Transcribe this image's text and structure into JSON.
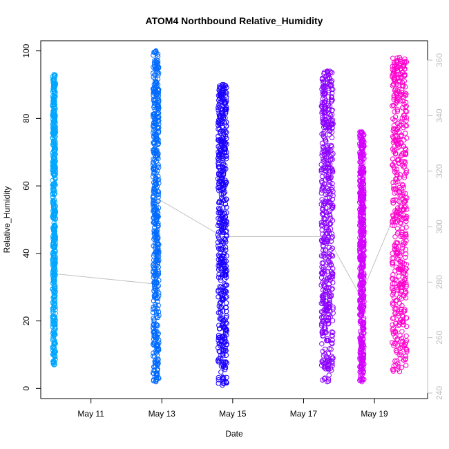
{
  "chart_data": {
    "type": "scatter",
    "title": "ATOM4 Northbound Relative_Humidity",
    "xlabel": "Date",
    "ylabel": "Relative_Humidity",
    "x_ticks": [
      "May 11",
      "May 13",
      "May 15",
      "May 17",
      "May 19"
    ],
    "y_ticks": [
      0,
      20,
      40,
      60,
      80,
      100
    ],
    "y2_ticks": [
      240,
      260,
      280,
      300,
      320,
      340,
      360
    ],
    "xlim": [
      "May 9 14:00",
      "May 20 12:00"
    ],
    "ylim": [
      -3,
      103
    ],
    "y2lim": [
      238,
      367
    ],
    "grid": false,
    "colors": [
      "#00a6ff",
      "#006bff",
      "#1a00ff",
      "#8a00ff",
      "#d400ff",
      "#ff00cc"
    ],
    "point_style": "open-circle",
    "series": [
      {
        "x_range": [
          "May 9 22:00",
          "May 10 00:00"
        ],
        "y_min": 7,
        "y_max": 93,
        "color": "#00a6ff"
      },
      {
        "x_range": [
          "May 12 18:00",
          "May 12 22:00"
        ],
        "y_min": 2,
        "y_max": 100,
        "color": "#006bff"
      },
      {
        "x_range": [
          "May 14 14:00",
          "May 14 20:00"
        ],
        "y_min": 1,
        "y_max": 90,
        "color": "#1a00ff"
      },
      {
        "x_range": [
          "May 17 12:00",
          "May 17 20:00"
        ],
        "y_min": 2,
        "y_max": 94,
        "color": "#8a00ff"
      },
      {
        "x_range": [
          "May 18 14:00",
          "May 18 17:00"
        ],
        "y_min": 2,
        "y_max": 76,
        "color": "#d400ff"
      },
      {
        "x_range": [
          "May 19 12:00",
          "May 19 22:00"
        ],
        "y_min": 5,
        "y_max": 98,
        "color": "#ff00cc"
      }
    ],
    "trend_line": {
      "color": "#c0c0c0",
      "points": [
        {
          "x": "May 9 23:00",
          "y": 34
        },
        {
          "x": "May 12 18:00",
          "y": 31
        },
        {
          "x": "May 12 22:00",
          "y": 56
        },
        {
          "x": "May 14 17:00",
          "y": 45
        },
        {
          "x": "May 17 16:00",
          "y": 45
        },
        {
          "x": "May 18 15:00",
          "y": 27
        },
        {
          "x": "May 18 20:00",
          "y": 33
        },
        {
          "x": "May 19 18:00",
          "y": 56
        }
      ]
    }
  }
}
